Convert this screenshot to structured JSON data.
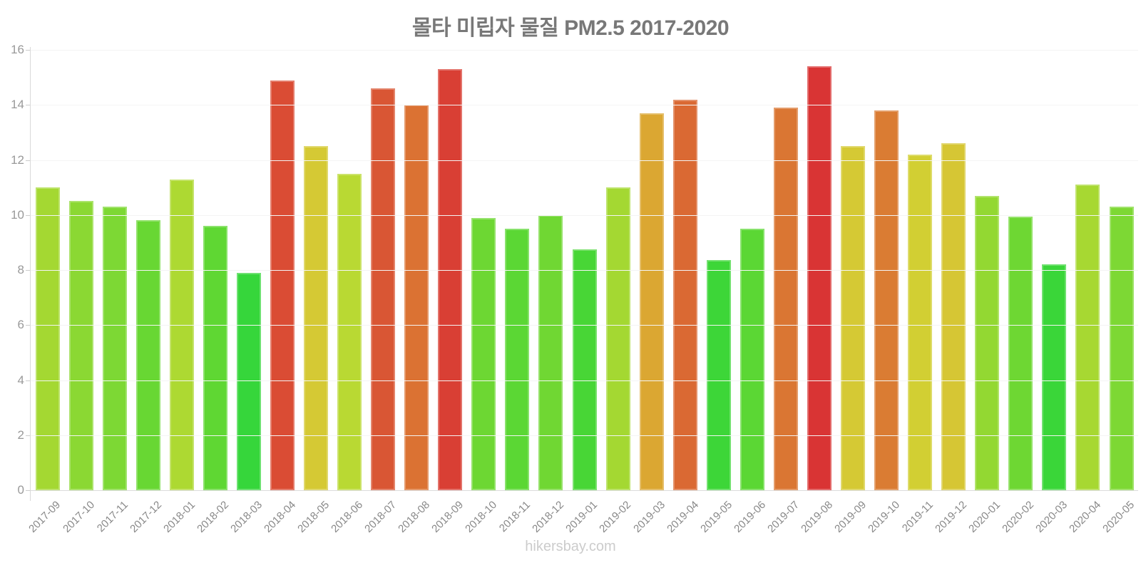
{
  "chart_data": {
    "type": "bar",
    "title": "몰타 미립자 물질 PM2.5 2017-2020",
    "footer": "hikersbay.com",
    "xlabel": "",
    "ylabel": "",
    "ylim": [
      0,
      16
    ],
    "yticks": [
      0,
      2,
      4,
      6,
      8,
      10,
      12,
      14,
      16
    ],
    "grid": "horizontal",
    "legend": "none",
    "categories": [
      "2017-09",
      "2017-10",
      "2017-11",
      "2017-12",
      "2018-01",
      "2018-02",
      "2018-03",
      "2018-04",
      "2018-05",
      "2018-06",
      "2018-07",
      "2018-08",
      "2018-09",
      "2018-10",
      "2018-11",
      "2018-12",
      "2019-01",
      "2019-02",
      "2019-03",
      "2019-04",
      "2019-05",
      "2019-06",
      "2019-07",
      "2019-08",
      "2019-09",
      "2019-10",
      "2019-11",
      "2019-12",
      "2020-01",
      "2020-02",
      "2020-03",
      "2020-04",
      "2020-05"
    ],
    "values": [
      11.0,
      10.5,
      10.3,
      9.8,
      11.3,
      9.6,
      7.9,
      14.9,
      12.5,
      11.5,
      14.6,
      14.0,
      15.3,
      9.9,
      9.5,
      10.0,
      8.75,
      11.0,
      13.7,
      14.2,
      8.35,
      9.5,
      13.9,
      15.4,
      12.5,
      13.8,
      12.2,
      12.6,
      10.7,
      9.95,
      8.2,
      11.1,
      10.3
    ],
    "bar_colors": [
      "#A4D832",
      "#8BD833",
      "#7DD834",
      "#68D733",
      "#ADD932",
      "#5FD733",
      "#36D63B",
      "#DA4C34",
      "#D5C934",
      "#B9D933",
      "#D95634",
      "#DB7233",
      "#D93F34",
      "#6DD733",
      "#5BD734",
      "#70D733",
      "#48D636",
      "#A4D832",
      "#DBA732",
      "#DA6933",
      "#3DD638",
      "#5BD734",
      "#DA7633",
      "#D93434",
      "#D5C934",
      "#DA7C33",
      "#D2CF33",
      "#D6C634",
      "#93D832",
      "#6ED733",
      "#3AD639",
      "#A7D832",
      "#7DD834"
    ]
  }
}
